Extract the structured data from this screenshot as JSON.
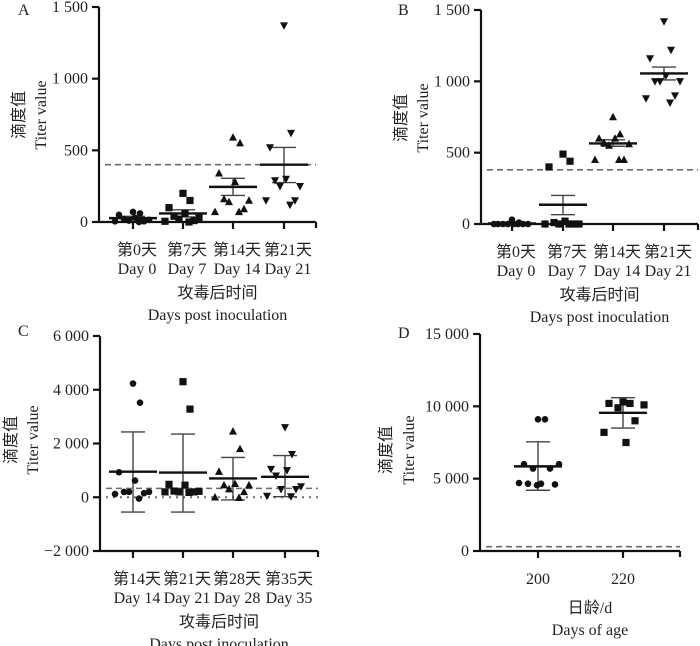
{
  "chart_data": [
    {
      "panel": "A",
      "type": "scatter",
      "title": "",
      "ylabel_cn": "滴度值",
      "ylabel": "Titer value",
      "xlabel_cn": "攻毒后时间",
      "xlabel": "Days post inoculation",
      "categories_cn": [
        "第0天",
        "第7天",
        "第14天",
        "第21天"
      ],
      "categories": [
        "Day 0",
        "Day 7",
        "Day 14",
        "Day 21"
      ],
      "ylim": [
        0,
        1500
      ],
      "yticks": [
        0,
        500,
        1000,
        1500
      ],
      "ytick_labels": [
        "0",
        "500",
        "1 000",
        "1 500"
      ],
      "reference_lines": [
        {
          "style": "dashed",
          "value": 400
        }
      ],
      "series": [
        {
          "name": "Day 0",
          "marker": "circle",
          "values": [
            70,
            60,
            50,
            30,
            20,
            15,
            10,
            5,
            5,
            0
          ],
          "mean": 27,
          "error": [
            15,
            40
          ]
        },
        {
          "name": "Day 7",
          "marker": "square",
          "values": [
            200,
            150,
            100,
            60,
            40,
            30,
            20,
            10,
            5,
            0
          ],
          "mean": 60,
          "error": [
            35,
            85
          ]
        },
        {
          "name": "Day 14",
          "marker": "triangle-up",
          "values": [
            590,
            550,
            340,
            280,
            160,
            150,
            140,
            90,
            70,
            70
          ],
          "mean": 245,
          "error": [
            185,
            305
          ]
        },
        {
          "name": "Day 21",
          "marker": "triangle-down",
          "values": [
            1370,
            620,
            520,
            300,
            290,
            250,
            250,
            150,
            150,
            120
          ],
          "mean": 400,
          "error": [
            275,
            520
          ]
        }
      ]
    },
    {
      "panel": "B",
      "type": "scatter",
      "ylabel_cn": "滴度值",
      "ylabel": "Titer value",
      "xlabel_cn": "攻毒后时间",
      "xlabel": "Days post inoculation",
      "categories_cn": [
        "第0天",
        "第7天",
        "第14天",
        "第21天"
      ],
      "categories": [
        "Day 0",
        "Day 7",
        "Day 14",
        "Day 21"
      ],
      "ylim": [
        0,
        1500
      ],
      "yticks": [
        0,
        500,
        1000,
        1500
      ],
      "ytick_labels": [
        "0",
        "500",
        "1 000",
        "1 500"
      ],
      "reference_lines": [
        {
          "style": "dashed",
          "value": 380
        }
      ],
      "series": [
        {
          "name": "Day 0",
          "marker": "circle",
          "values": [
            30,
            10,
            0,
            0,
            0,
            0,
            0,
            0,
            0,
            0
          ],
          "mean": 4,
          "error": [
            0,
            8
          ]
        },
        {
          "name": "Day 7",
          "marker": "square",
          "values": [
            490,
            440,
            400,
            20,
            10,
            0,
            0,
            0,
            0,
            0
          ],
          "mean": 135,
          "error": [
            65,
            200
          ]
        },
        {
          "name": "Day 14",
          "marker": "triangle-up",
          "values": [
            750,
            630,
            600,
            600,
            570,
            560,
            550,
            450,
            450,
            450
          ],
          "mean": 565,
          "error": [
            545,
            590
          ]
        },
        {
          "name": "Day 21",
          "marker": "triangle-down",
          "values": [
            1420,
            1220,
            1160,
            1040,
            1000,
            1000,
            1000,
            900,
            880,
            850
          ],
          "mean": 1055,
          "error": [
            1010,
            1100
          ]
        }
      ]
    },
    {
      "panel": "C",
      "type": "scatter",
      "ylabel_cn": "滴度值",
      "ylabel": "Titer value",
      "xlabel_cn": "攻毒后时间",
      "xlabel": "Days post inoculation",
      "categories_cn": [
        "第14天",
        "第21天",
        "第28天",
        "第35天"
      ],
      "categories": [
        "Day 14",
        "Day 21",
        "Day 28",
        "Day 35"
      ],
      "ylim": [
        -2000,
        6000
      ],
      "yticks": [
        -2000,
        0,
        2000,
        4000,
        6000
      ],
      "ytick_labels": [
        "−2 000",
        "0",
        "2 000",
        "4 000",
        "6 000"
      ],
      "reference_lines": [
        {
          "style": "dashed",
          "value": 330
        },
        {
          "style": "dotted",
          "value": 0
        }
      ],
      "series": [
        {
          "name": "Day 14",
          "marker": "circle",
          "values": [
            4230,
            3520,
            930,
            620,
            200,
            200,
            200,
            150,
            120,
            -50
          ],
          "mean": 950,
          "error": [
            -550,
            2430
          ]
        },
        {
          "name": "Day 21",
          "marker": "square",
          "values": [
            4300,
            3280,
            480,
            450,
            230,
            220,
            200,
            200,
            200,
            180
          ],
          "mean": 920,
          "error": [
            -550,
            2350
          ]
        },
        {
          "name": "Day 28",
          "marker": "triangle-up",
          "values": [
            2450,
            1800,
            950,
            500,
            450,
            450,
            300,
            200,
            0,
            -20
          ],
          "mean": 700,
          "error": [
            -100,
            1480
          ]
        },
        {
          "name": "Day 35",
          "marker": "triangle-down",
          "values": [
            2600,
            1600,
            1050,
            1000,
            800,
            400,
            300,
            300,
            50,
            30
          ],
          "mean": 760,
          "error": [
            20,
            1550
          ]
        }
      ]
    },
    {
      "panel": "D",
      "type": "scatter",
      "ylabel_cn": "滴度值",
      "ylabel": "Titer value",
      "xlabel_cn": "日龄/d",
      "xlabel": "Days of age",
      "categories": [
        "200",
        "220"
      ],
      "ylim": [
        0,
        15000
      ],
      "yticks": [
        0,
        5000,
        10000,
        15000
      ],
      "ytick_labels": [
        "0",
        "5 000",
        "10 000",
        "15 000"
      ],
      "reference_lines": [
        {
          "style": "dashed",
          "value": 300
        }
      ],
      "series": [
        {
          "name": "200",
          "marker": "circle",
          "values": [
            9100,
            9100,
            6000,
            6000,
            5700,
            5700,
            4700,
            4650,
            4650,
            4600,
            4550
          ],
          "mean": 5850,
          "error": [
            4200,
            7550
          ]
        },
        {
          "name": "220",
          "marker": "square",
          "values": [
            10300,
            10200,
            10200,
            10100,
            9900,
            9000,
            8200,
            7500
          ],
          "mean": 9550,
          "error": [
            8500,
            10600
          ]
        }
      ]
    }
  ]
}
